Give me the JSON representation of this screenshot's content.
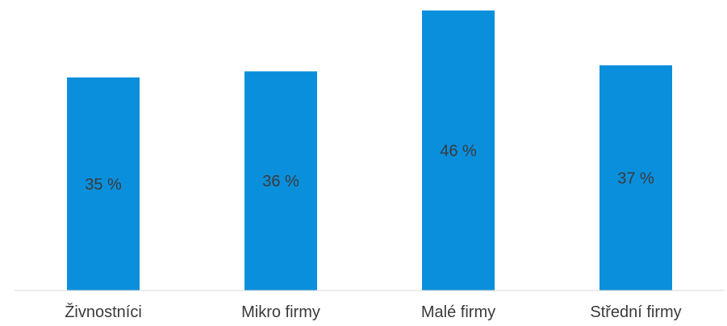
{
  "chart_data": {
    "type": "bar",
    "categories": [
      "Živnostníci",
      "Mikro firmy",
      "Malé firmy",
      "Střední firmy"
    ],
    "values": [
      35,
      36,
      46,
      37
    ],
    "value_labels": [
      "35 %",
      "36 %",
      "46 %",
      "37 %"
    ],
    "title": "",
    "xlabel": "",
    "ylabel": "",
    "ylim": [
      0,
      46
    ],
    "grid": false,
    "legend": "none",
    "colors": {
      "bar": "#0a8fdc",
      "axis": "#d9d9d9",
      "text": "#3a3a3a"
    }
  }
}
